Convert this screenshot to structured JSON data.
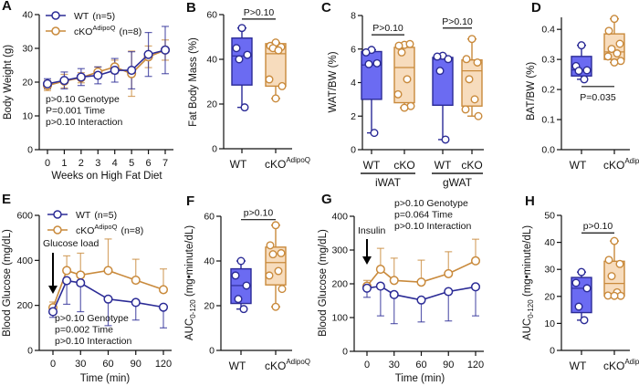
{
  "colors": {
    "wt_line": "#2b2b96",
    "wt_fill": "#6b6bf2",
    "cko_line": "#c98a3c",
    "cko_fill": "#f7dcbd"
  },
  "chart_data": [
    {
      "letter": "A",
      "type": "line",
      "ylabel": "Body Weight (g)",
      "xlabel": "Weeks on High Fat  Diet",
      "ylim": [
        0,
        40
      ],
      "yticks": [
        "0",
        "10",
        "20",
        "30",
        "40"
      ],
      "xlim": [
        0,
        7
      ],
      "xticks": [
        "0",
        "1",
        "2",
        "3",
        "4",
        "5",
        "6",
        "7"
      ],
      "legend": [
        {
          "label": "WT",
          "sup": "",
          "n": "(n=5)"
        },
        {
          "label": "cKO",
          "sup": "AdipoQ",
          "n": "(n=8)"
        }
      ],
      "series": [
        {
          "x": [
            0,
            1,
            2,
            3,
            4,
            5,
            6,
            7
          ],
          "mean": [
            19.5,
            20.5,
            21.5,
            22,
            23.5,
            23.5,
            28.2,
            29.5
          ],
          "err": [
            1.5,
            2.5,
            2.5,
            2.5,
            3.5,
            5.5,
            6.5,
            7
          ],
          "err_dir": "both"
        },
        {
          "x": [
            0,
            1,
            2,
            3,
            4,
            5,
            6,
            7
          ],
          "mean": [
            19,
            20.3,
            21.3,
            23,
            24.5,
            22.5,
            27.5,
            29.5
          ],
          "err": [
            1.5,
            2,
            1.5,
            1.5,
            2,
            6.7,
            3.2,
            3
          ],
          "err_dir": "both"
        }
      ],
      "stats": [
        "p>0.10 Genotype",
        "P=0.001 Time",
        "p>0.10 Interaction"
      ]
    },
    {
      "letter": "B",
      "type": "box",
      "ylabel": "Fat Body Mass (%)",
      "ylim": [
        0,
        60
      ],
      "yticks": [
        "0",
        "20",
        "40",
        "60"
      ],
      "categories": [
        {
          "label": "WT",
          "sup": ""
        },
        {
          "label": "cKO",
          "sup": "AdipoQ"
        }
      ],
      "groups": [
        {
          "points": [
            54,
            45,
            42,
            40,
            18.5
          ],
          "min": 18.5,
          "q1": 28.5,
          "median": 41.5,
          "q3": 49.5,
          "max": 54
        },
        {
          "points": [
            47.5,
            46,
            45.5,
            45,
            44,
            31,
            28,
            22.5
          ],
          "min": 22.5,
          "q1": 28,
          "median": 42.5,
          "q3": 47,
          "max": 47.5
        }
      ],
      "significance": [
        {
          "label": "P>0.10",
          "from": 0,
          "to": 1,
          "y": 58
        }
      ]
    },
    {
      "letter": "C",
      "type": "box",
      "ylabel": "WAT/BW (%)",
      "ylim": [
        0,
        8
      ],
      "yticks": [
        "0",
        "2",
        "4",
        "6",
        "8"
      ],
      "categories": [
        {
          "label": "WT",
          "sup": ""
        },
        {
          "label": "cKO",
          "sup": ""
        },
        {
          "label": "WT",
          "sup": ""
        },
        {
          "label": "cKO",
          "sup": ""
        }
      ],
      "group_labels": [
        "iWAT",
        "gWAT"
      ],
      "groups": [
        {
          "points": [
            5.95,
            5.8,
            5.15,
            5.1,
            1.0
          ],
          "min": 1.0,
          "q1": 3.0,
          "median": 5.05,
          "q3": 5.85,
          "max": 5.95
        },
        {
          "points": [
            6.25,
            6.2,
            6.3,
            5.8,
            4.2,
            3.3,
            2.6,
            2.5
          ],
          "min": 2.5,
          "q1": 2.8,
          "median": 4.9,
          "q3": 6.1,
          "max": 6.3
        },
        {
          "points": [
            5.6,
            5.55,
            5.4,
            4.7,
            0.6
          ],
          "min": 0.6,
          "q1": 2.65,
          "median": 5.4,
          "q3": 5.5,
          "max": 5.6
        },
        {
          "points": [
            6.6,
            5.4,
            5.2,
            4.2,
            3.0,
            2.4,
            2.0
          ],
          "min": 2.0,
          "q1": 2.6,
          "median": 4.7,
          "q3": 5.35,
          "max": 6.6
        }
      ],
      "significance": [
        {
          "label": "P>0.10",
          "from": 0,
          "to": 1,
          "y": 6.85
        },
        {
          "label": "P>0.10",
          "from": 2,
          "to": 3,
          "y": 7.25
        }
      ]
    },
    {
      "letter": "D",
      "type": "box",
      "ylabel": "BAT/BW (%)",
      "ylim": [
        0,
        0.44
      ],
      "yticks": [
        "0.0",
        "0.1",
        "0.2",
        "0.3",
        "0.4"
      ],
      "categories": [
        {
          "label": "WT",
          "sup": ""
        },
        {
          "label": "cKO",
          "sup": "AdipoQ"
        }
      ],
      "groups": [
        {
          "points": [
            0.347,
            0.278,
            0.264,
            0.262,
            0.234
          ],
          "min": 0.234,
          "q1": 0.245,
          "median": 0.265,
          "q3": 0.31,
          "max": 0.347
        },
        {
          "points": [
            0.435,
            0.395,
            0.352,
            0.335,
            0.32,
            0.31,
            0.295,
            0.29
          ],
          "min": 0.29,
          "q1": 0.3,
          "median": 0.325,
          "q3": 0.385,
          "max": 0.435
        }
      ],
      "significance": [
        {
          "label": "P=0.035",
          "from": 0,
          "to": 1,
          "y": 0.21,
          "label_below": true
        }
      ]
    },
    {
      "letter": "E",
      "type": "line",
      "ylabel": "Blood Glucose (mg/dL)",
      "xlabel": "Time (min)",
      "ylim": [
        0,
        600
      ],
      "yticks": [
        "0",
        "200",
        "400",
        "600"
      ],
      "xlim": [
        0,
        120
      ],
      "xticks": [
        "0",
        "30",
        "60",
        "90",
        "120"
      ],
      "legend": [
        {
          "label": "WT",
          "sup": "",
          "n": "(n=5)"
        },
        {
          "label": "cKO",
          "sup": "AdipoQ",
          "n": "(n=8)"
        }
      ],
      "series": [
        {
          "x": [
            0,
            15,
            30,
            60,
            90,
            120
          ],
          "mean": [
            172,
            310,
            300,
            228,
            213,
            192
          ],
          "err": [
            25,
            105,
            128,
            118,
            78,
            92
          ],
          "err_dir": "down"
        },
        {
          "x": [
            0,
            15,
            30,
            60,
            90,
            120
          ],
          "mean": [
            190,
            355,
            335,
            355,
            312,
            270
          ],
          "err": [
            25,
            65,
            97,
            140,
            93,
            92
          ],
          "err_dir": "up"
        }
      ],
      "annotation": "Glucose load",
      "stats": [
        "p>0.10 Genotype",
        "p=0.002 Time",
        "p>0.10 Interaction"
      ]
    },
    {
      "letter": "F",
      "type": "box",
      "ylabel": {
        "main": "AUC",
        "sub": "0-120",
        "rest": " (mg•minute/dL)"
      },
      "ylim": [
        0,
        60
      ],
      "yticks": [
        "0",
        "20",
        "40",
        "60"
      ],
      "categories": [
        {
          "label": "WT",
          "sup": ""
        },
        {
          "label": "cKO",
          "sup": "AdipoQ"
        }
      ],
      "groups": [
        {
          "points": [
            40,
            33.5,
            29,
            23,
            18.5
          ],
          "min": 18.5,
          "q1": 21,
          "median": 29,
          "q3": 36.5,
          "max": 40
        },
        {
          "points": [
            56,
            47,
            43.5,
            43,
            35.5,
            33.5,
            27.5,
            19.5
          ],
          "min": 19.5,
          "q1": 29.3,
          "median": 39.3,
          "q3": 46.2,
          "max": 56
        }
      ],
      "significance": [
        {
          "label": "p>0.10",
          "from": 0,
          "to": 1,
          "y": 58.5
        }
      ]
    },
    {
      "letter": "G",
      "type": "line",
      "ylabel": "Blood Glucose (mg/dL)",
      "xlabel": "Time (min)",
      "ylim": [
        0,
        400
      ],
      "yticks": [
        "0",
        "100",
        "200",
        "300",
        "400"
      ],
      "xlim": [
        0,
        120
      ],
      "xticks": [
        "0",
        "30",
        "60",
        "90",
        "120"
      ],
      "series": [
        {
          "x": [
            0,
            15,
            30,
            60,
            90,
            120
          ],
          "mean": [
            187,
            193,
            168,
            152,
            177,
            191
          ],
          "err": [
            27,
            88,
            86,
            65,
            87,
            86
          ],
          "err_dir": "down"
        },
        {
          "x": [
            0,
            15,
            30,
            60,
            90,
            120
          ],
          "mean": [
            193,
            243,
            210,
            205,
            230,
            268
          ],
          "err": [
            17,
            62,
            66,
            65,
            65,
            64
          ],
          "err_dir": "up"
        }
      ],
      "annotation": "Insulin",
      "stats": [
        "p>0.10 Genotype",
        "p=0.064 Time",
        "p>0.10 Interaction"
      ]
    },
    {
      "letter": "H",
      "type": "box",
      "ylabel": {
        "main": "AUC",
        "sub": "0-120",
        "rest": " (mg•minute/dL)"
      },
      "ylim": [
        0,
        50
      ],
      "yticks": [
        "0",
        "10",
        "20",
        "30",
        "40",
        "50"
      ],
      "categories": [
        {
          "label": "WT",
          "sup": ""
        },
        {
          "label": "cKO",
          "sup": "AdipoQ"
        }
      ],
      "groups": [
        {
          "points": [
            29,
            25,
            23,
            16.2,
            11.2
          ],
          "min": 11.2,
          "q1": 14,
          "median": 23,
          "q3": 27,
          "max": 29
        },
        {
          "points": [
            40.5,
            33.5,
            32,
            27.5,
            21.5,
            20.3,
            20.2,
            20.2
          ],
          "min": 20.2,
          "q1": 20.2,
          "median": 24.8,
          "q3": 33,
          "max": 40.5
        }
      ],
      "significance": [
        {
          "label": "p>0.10",
          "from": 0,
          "to": 1,
          "y": 43.5
        }
      ]
    }
  ]
}
